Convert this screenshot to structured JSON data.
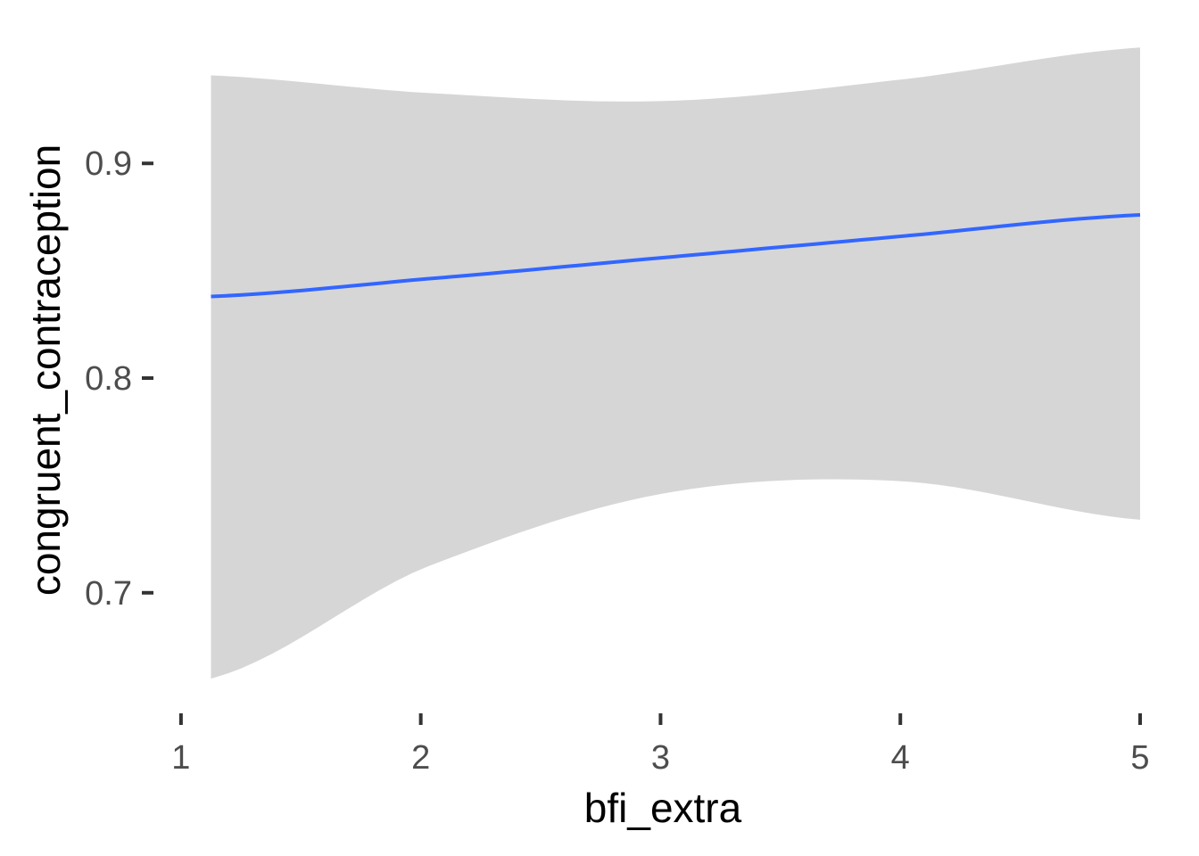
{
  "chart_data": {
    "type": "line",
    "xlabel": "bfi_extra",
    "ylabel": "congruent_contraception",
    "xlim": [
      0.9,
      5.0
    ],
    "ylim": [
      0.648,
      0.957
    ],
    "x_ticks": [
      "1",
      "2",
      "3",
      "4",
      "5"
    ],
    "y_ticks": [
      "0.7",
      "0.8",
      "0.9"
    ],
    "grid": false,
    "legend": "none",
    "colors": {
      "line": "#3366ff",
      "ribbon": "#d6d6d6"
    },
    "series": [
      {
        "x": [
          1.125,
          2.0,
          3.0,
          4.0,
          5.0
        ],
        "y": [
          0.838,
          0.846,
          0.856,
          0.866,
          0.876
        ],
        "ymin": [
          0.66,
          0.711,
          0.746,
          0.752,
          0.734
        ],
        "ymax": [
          0.941,
          0.933,
          0.929,
          0.939,
          0.954
        ]
      }
    ]
  }
}
